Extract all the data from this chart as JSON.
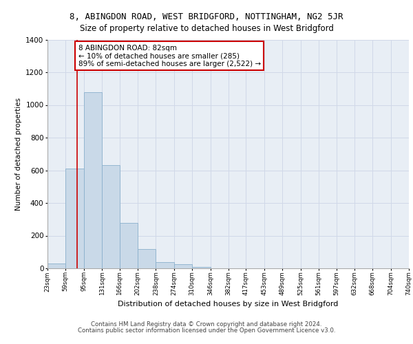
{
  "title": "8, ABINGDON ROAD, WEST BRIDGFORD, NOTTINGHAM, NG2 5JR",
  "subtitle": "Size of property relative to detached houses in West Bridgford",
  "xlabel": "Distribution of detached houses by size in West Bridgford",
  "ylabel": "Number of detached properties",
  "footer_line1": "Contains HM Land Registry data © Crown copyright and database right 2024.",
  "footer_line2": "Contains public sector information licensed under the Open Government Licence v3.0.",
  "bar_edges": [
    23,
    59,
    95,
    131,
    166,
    202,
    238,
    274,
    310,
    346,
    382,
    417,
    453,
    489,
    525,
    561,
    597,
    632,
    668,
    704,
    740
  ],
  "bar_heights": [
    30,
    610,
    1080,
    630,
    280,
    120,
    40,
    25,
    10,
    0,
    0,
    0,
    0,
    0,
    0,
    0,
    0,
    0,
    0,
    0
  ],
  "bar_color": "#c9d9e8",
  "bar_edge_color": "#8ab0cc",
  "grid_color": "#d0d8e8",
  "bg_color": "#e8eef5",
  "vline_x": 82,
  "vline_color": "#cc0000",
  "annotation_text": "8 ABINGDON ROAD: 82sqm\n← 10% of detached houses are smaller (285)\n89% of semi-detached houses are larger (2,522) →",
  "annotation_box_color": "#ffffff",
  "annotation_box_edge": "#cc0000",
  "ylim": [
    0,
    1400
  ],
  "yticks": [
    0,
    200,
    400,
    600,
    800,
    1000,
    1200,
    1400
  ],
  "tick_labels": [
    "23sqm",
    "59sqm",
    "95sqm",
    "131sqm",
    "166sqm",
    "202sqm",
    "238sqm",
    "274sqm",
    "310sqm",
    "346sqm",
    "382sqm",
    "417sqm",
    "453sqm",
    "489sqm",
    "525sqm",
    "561sqm",
    "597sqm",
    "632sqm",
    "668sqm",
    "704sqm",
    "740sqm"
  ]
}
